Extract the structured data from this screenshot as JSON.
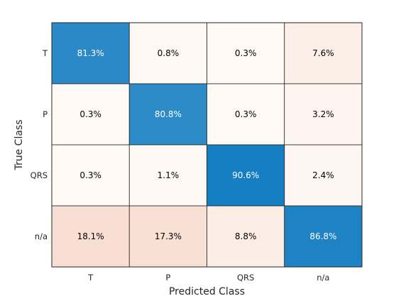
{
  "chart_data": {
    "type": "heatmap",
    "xlabel": "Predicted Class",
    "ylabel": "True Class",
    "x_categories": [
      "T",
      "P",
      "QRS",
      "n/a"
    ],
    "y_categories": [
      "T",
      "P",
      "QRS",
      "n/a"
    ],
    "values": [
      [
        81.3,
        0.8,
        0.3,
        7.6
      ],
      [
        0.3,
        80.8,
        0.3,
        3.2
      ],
      [
        0.3,
        1.1,
        90.6,
        2.4
      ],
      [
        18.1,
        17.3,
        8.8,
        86.8
      ]
    ],
    "cell_labels": [
      [
        "81.3%",
        "0.8%",
        "0.3%",
        "7.6%"
      ],
      [
        "0.3%",
        "80.8%",
        "0.3%",
        "3.2%"
      ],
      [
        "0.3%",
        "1.1%",
        "90.6%",
        "2.4%"
      ],
      [
        "18.1%",
        "17.3%",
        "8.8%",
        "86.8%"
      ]
    ],
    "diagonal_color": "#0072bd",
    "offdiagonal_color": "#d95319"
  }
}
